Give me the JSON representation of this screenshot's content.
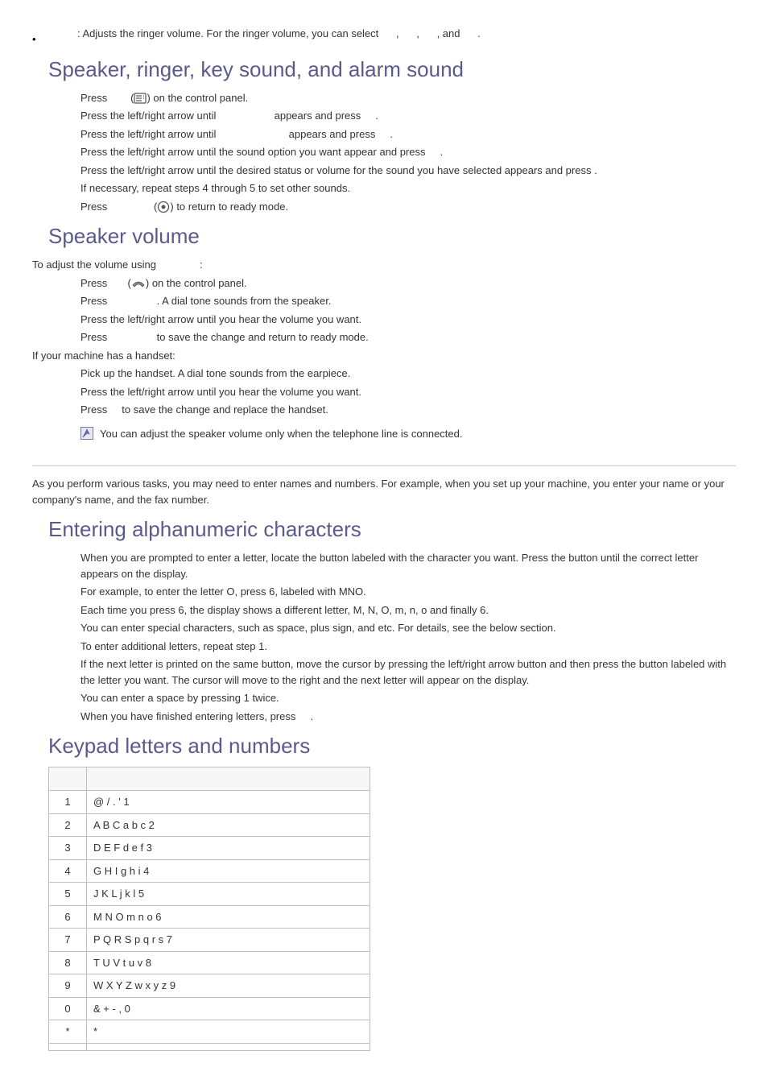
{
  "top_bullet": {
    "pre": ": Adjusts the ringer volume. For the ringer volume, you can select",
    "sep1": ",",
    "sep2": ",",
    "sep3": ", and",
    "end": "."
  },
  "h_speaker_ringer": "Speaker, ringer, key sound, and alarm sound",
  "sr_steps": {
    "s1a": "Press",
    "s1b": "(",
    "s1c": ") on the control panel.",
    "s2a": "Press the left/right arrow until",
    "s2b": "appears and press",
    "s2c": ".",
    "s3a": "Press the left/right arrow until",
    "s3b": "appears and press",
    "s3c": ".",
    "s4a": "Press the left/right arrow until the sound option you want appear and press",
    "s4b": ".",
    "s5a": "Press the left/right arrow until the desired status or volume for the sound you have selected appears and press",
    "s5b": ".",
    "s6": "If necessary, repeat steps 4 through 5 to set other sounds.",
    "s7a": "Press",
    "s7b": "(",
    "s7c": ") to return to ready mode."
  },
  "h_speaker_volume": "Speaker volume",
  "sv_intro": "To adjust the volume using",
  "sv_intro_colon": ":",
  "sv": {
    "s1a": "Press",
    "s1b": "(",
    "s1c": ") on the control panel.",
    "s2a": "Press",
    "s2b": ". A dial tone sounds from the speaker.",
    "s3": "Press the left/right arrow until you hear the volume you want.",
    "s4a": "Press",
    "s4b": "to save the change and return to ready mode."
  },
  "handset_intro": "If your machine has a handset:",
  "hs": {
    "s1": "Pick up the handset. A dial tone sounds from the earpiece.",
    "s2": "Press the left/right arrow until you hear the volume you want.",
    "s3a": "Press",
    "s3b": "to save the change and replace the handset."
  },
  "note_text": "You can adjust the speaker volume only when the telephone line is connected.",
  "intro_alpha": "As you perform various tasks, you may need to enter names and numbers. For example, when you set up your machine, you enter your name or your company's name, and the fax number.",
  "h_alpha": "Entering alphanumeric characters",
  "alpha": {
    "s1": "When you are prompted to enter a letter, locate the button labeled with the character you want. Press the button until the correct letter appears on the display.",
    "s1b": "For example, to enter the letter O, press 6, labeled with MNO.",
    "s1c": "Each time you press 6, the display shows a different letter, M, N, O, m, n, o and finally 6.",
    "s1d": "You can enter special characters, such as space, plus sign, and etc. For details, see the below section.",
    "s2": "To enter additional letters, repeat step 1.",
    "s2b": "If the next letter is printed on the same button, move the cursor by pressing the left/right arrow button and then press the button labeled with the letter you want. The cursor will move to the right and the next letter will appear on the display.",
    "s2c": "You can enter a space by pressing 1 twice.",
    "s3a": "When you have finished entering letters, press",
    "s3b": "."
  },
  "h_keypad": "Keypad letters and numbers",
  "keypad": {
    "rows": [
      {
        "k": "1",
        "v": "@ / . ' 1"
      },
      {
        "k": "2",
        "v": "A B C a b c 2"
      },
      {
        "k": "3",
        "v": "D E F d e f 3"
      },
      {
        "k": "4",
        "v": "G H I g h i 4"
      },
      {
        "k": "5",
        "v": "J K L j k l 5"
      },
      {
        "k": "6",
        "v": "M N O m n o 6"
      },
      {
        "k": "7",
        "v": "P Q R S p q r s 7"
      },
      {
        "k": "8",
        "v": "T U V t u v 8"
      },
      {
        "k": "9",
        "v": "W X Y Z w x y z 9"
      },
      {
        "k": "0",
        "v": "& + - , 0"
      },
      {
        "k": "*",
        "v": "*"
      }
    ]
  },
  "colors": {
    "heading": "#5a5a8c",
    "text": "#333333",
    "border": "#bfbfbf"
  }
}
